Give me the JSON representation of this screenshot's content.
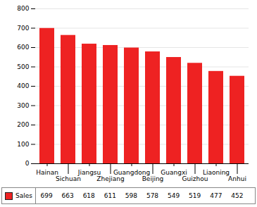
{
  "chart_data": {
    "type": "bar",
    "categories": [
      "Hainan",
      "Sichuan",
      "Jiangsu",
      "Zhejiang",
      "Guangdong",
      "Beijing",
      "Guangxi",
      "Guizhou",
      "Liaoning",
      "Anhui"
    ],
    "series": [
      {
        "name": "Sales",
        "color": "#EE2222",
        "values": [
          699,
          663,
          618,
          611,
          598,
          578,
          549,
          519,
          477,
          452
        ]
      }
    ],
    "ylim": [
      0,
      800
    ],
    "yticks": [
      0,
      100,
      200,
      300,
      400,
      500,
      600,
      700,
      800
    ],
    "grid": true,
    "legend": "bottom"
  }
}
